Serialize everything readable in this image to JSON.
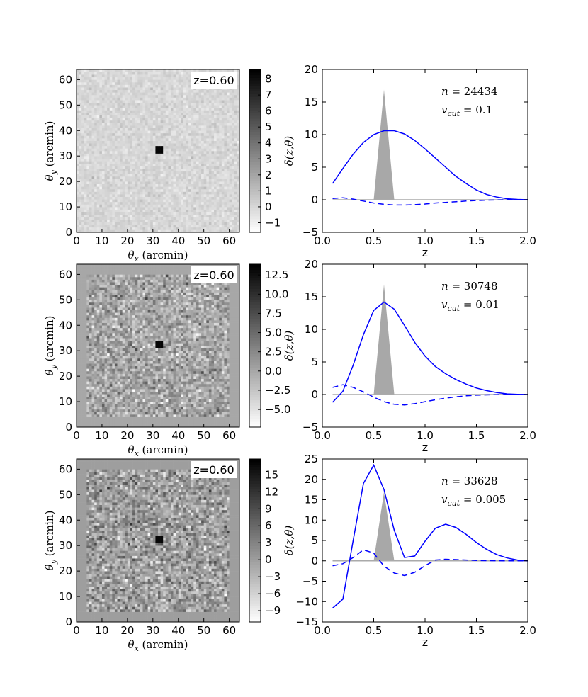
{
  "chart_data": [
    {
      "type": "heatmap",
      "xlabel": "θx (arcmin)",
      "ylabel": "θy (arcmin)",
      "xlim": [
        0,
        64
      ],
      "ylim": [
        0,
        64
      ],
      "xticks": [
        "0",
        "10",
        "20",
        "30",
        "40",
        "50",
        "60"
      ],
      "yticks": [
        "0",
        "10",
        "20",
        "30",
        "40",
        "50",
        "60"
      ],
      "annotation": "z=0.60",
      "colorbar_ticks": [
        "−1",
        "0",
        "1",
        "2",
        "3",
        "4",
        "5",
        "6",
        "7",
        "8"
      ],
      "colorbar_range": [
        -1.6,
        8.6
      ],
      "peak": {
        "x": 32,
        "y": 32,
        "value": 8.4
      },
      "noise_sigma": 0.35,
      "border_width": 0,
      "seed": 11
    },
    {
      "type": "line",
      "xlabel": "z",
      "ylabel": "δ(z,θ)",
      "xlim": [
        0,
        2.0
      ],
      "ylim": [
        -5,
        20
      ],
      "xticks": [
        "0.0",
        "0.5",
        "1.0",
        "1.5",
        "2.0"
      ],
      "yticks": [
        "−5",
        "0",
        "5",
        "10",
        "15",
        "20"
      ],
      "ytick_values": [
        -5,
        0,
        5,
        10,
        15,
        20
      ],
      "xtick_values": [
        0,
        0.5,
        1.0,
        1.5,
        2.0
      ],
      "annotation_n": "n = 24434",
      "annotation_v": "vcut = 0.1",
      "n_value": "24434",
      "vcut_value": "0.1",
      "true_profile": {
        "x": [
          0.5,
          0.6,
          0.7
        ],
        "y": [
          0,
          16.9,
          0
        ]
      },
      "series": [
        {
          "style": "solid",
          "x": [
            0.1,
            0.2,
            0.3,
            0.4,
            0.5,
            0.6,
            0.7,
            0.8,
            0.9,
            1.0,
            1.1,
            1.2,
            1.3,
            1.4,
            1.5,
            1.6,
            1.7,
            1.8,
            1.9,
            2.0
          ],
          "values": [
            2.5,
            4.8,
            7.0,
            8.8,
            10.0,
            10.6,
            10.6,
            10.1,
            9.1,
            7.8,
            6.4,
            5.0,
            3.6,
            2.5,
            1.5,
            0.8,
            0.4,
            0.15,
            0.05,
            0.0
          ]
        },
        {
          "style": "dashed",
          "x": [
            0.1,
            0.2,
            0.3,
            0.4,
            0.5,
            0.6,
            0.7,
            0.8,
            0.9,
            1.0,
            1.1,
            1.2,
            1.3,
            1.4,
            1.5,
            1.6,
            1.7,
            1.8,
            1.9,
            2.0
          ],
          "values": [
            0.2,
            0.3,
            0.1,
            -0.2,
            -0.5,
            -0.7,
            -0.8,
            -0.8,
            -0.75,
            -0.65,
            -0.5,
            -0.4,
            -0.3,
            -0.2,
            -0.12,
            -0.06,
            -0.03,
            0.0,
            0.0,
            0.0
          ]
        }
      ]
    },
    {
      "type": "heatmap",
      "xlabel": "θx (arcmin)",
      "ylabel": "θy (arcmin)",
      "xlim": [
        0,
        64
      ],
      "ylim": [
        0,
        64
      ],
      "xticks": [
        "0",
        "10",
        "20",
        "30",
        "40",
        "50",
        "60"
      ],
      "yticks": [
        "0",
        "10",
        "20",
        "30",
        "40",
        "50",
        "60"
      ],
      "annotation": "z=0.60",
      "colorbar_ticks": [
        "−5.0",
        "−2.5",
        "0.0",
        "2.5",
        "5.0",
        "7.5",
        "10.0",
        "12.5"
      ],
      "colorbar_range": [
        -7.3,
        13.9
      ],
      "peak": {
        "x": 32,
        "y": 32,
        "value": 13.5
      },
      "noise_sigma": 2.4,
      "border_width": 4,
      "seed": 23
    },
    {
      "type": "line",
      "xlabel": "z",
      "ylabel": "δ(z,θ)",
      "xlim": [
        0,
        2.0
      ],
      "ylim": [
        -5,
        20
      ],
      "xticks": [
        "0.0",
        "0.5",
        "1.0",
        "1.5",
        "2.0"
      ],
      "yticks": [
        "−5",
        "0",
        "5",
        "10",
        "15",
        "20"
      ],
      "ytick_values": [
        -5,
        0,
        5,
        10,
        15,
        20
      ],
      "xtick_values": [
        0,
        0.5,
        1.0,
        1.5,
        2.0
      ],
      "annotation_n": "n = 30748",
      "annotation_v": "vcut = 0.01",
      "n_value": "30748",
      "vcut_value": "0.01",
      "true_profile": {
        "x": [
          0.5,
          0.6,
          0.7
        ],
        "y": [
          0,
          16.9,
          0
        ]
      },
      "series": [
        {
          "style": "solid",
          "x": [
            0.1,
            0.2,
            0.3,
            0.4,
            0.5,
            0.6,
            0.7,
            0.8,
            0.9,
            1.0,
            1.1,
            1.2,
            1.3,
            1.4,
            1.5,
            1.6,
            1.7,
            1.8,
            1.9,
            2.0
          ],
          "values": [
            -1.2,
            0.5,
            4.5,
            9.2,
            12.9,
            14.2,
            13.1,
            10.6,
            8.0,
            5.9,
            4.3,
            3.2,
            2.3,
            1.6,
            1.0,
            0.6,
            0.3,
            0.1,
            0.03,
            0.0
          ]
        },
        {
          "style": "dashed",
          "x": [
            0.1,
            0.2,
            0.3,
            0.4,
            0.5,
            0.6,
            0.7,
            0.8,
            0.9,
            1.0,
            1.1,
            1.2,
            1.3,
            1.4,
            1.5,
            1.6,
            1.7,
            1.8,
            1.9,
            2.0
          ],
          "values": [
            1.1,
            1.5,
            1.1,
            0.4,
            -0.4,
            -1.1,
            -1.5,
            -1.6,
            -1.4,
            -1.1,
            -0.8,
            -0.55,
            -0.35,
            -0.2,
            -0.1,
            -0.05,
            -0.02,
            0.0,
            0.0,
            0.0
          ]
        }
      ]
    },
    {
      "type": "heatmap",
      "xlabel": "θx (arcmin)",
      "ylabel": "θy (arcmin)",
      "xlim": [
        0,
        64
      ],
      "ylim": [
        0,
        64
      ],
      "xticks": [
        "0",
        "10",
        "20",
        "30",
        "40",
        "50",
        "60"
      ],
      "yticks": [
        "0",
        "10",
        "20",
        "30",
        "40",
        "50",
        "60"
      ],
      "annotation": "z=0.60",
      "colorbar_ticks": [
        "−9",
        "−6",
        "−3",
        "0",
        "3",
        "6",
        "9",
        "12",
        "15"
      ],
      "colorbar_range": [
        -11,
        17.8
      ],
      "peak": {
        "x": 32,
        "y": 32,
        "value": 17
      },
      "noise_sigma": 3.6,
      "border_width": 4,
      "seed": 37
    },
    {
      "type": "line",
      "xlabel": "z",
      "ylabel": "δ(z,θ)",
      "xlim": [
        0,
        2.0
      ],
      "ylim": [
        -15,
        25
      ],
      "xticks": [
        "0.0",
        "0.5",
        "1.0",
        "1.5",
        "2.0"
      ],
      "yticks": [
        "−15",
        "−10",
        "−5",
        "0",
        "5",
        "10",
        "15",
        "20",
        "25"
      ],
      "ytick_values": [
        -15,
        -10,
        -5,
        0,
        5,
        10,
        15,
        20,
        25
      ],
      "xtick_values": [
        0,
        0.5,
        1.0,
        1.5,
        2.0
      ],
      "annotation_n": "n = 33628",
      "annotation_v": "vcut = 0.005",
      "n_value": "33628",
      "vcut_value": "0.005",
      "true_profile": {
        "x": [
          0.5,
          0.6,
          0.7
        ],
        "y": [
          0,
          16.9,
          0
        ]
      },
      "series": [
        {
          "style": "solid",
          "x": [
            0.1,
            0.2,
            0.3,
            0.4,
            0.5,
            0.6,
            0.7,
            0.8,
            0.9,
            1.0,
            1.1,
            1.2,
            1.3,
            1.4,
            1.5,
            1.6,
            1.7,
            1.8,
            1.9,
            2.0
          ],
          "values": [
            -11.6,
            -9.4,
            5.0,
            19.0,
            23.5,
            17.5,
            7.5,
            0.8,
            1.2,
            4.8,
            8.0,
            9.0,
            8.2,
            6.5,
            4.5,
            2.8,
            1.5,
            0.7,
            0.2,
            0.0
          ]
        },
        {
          "style": "dashed",
          "x": [
            0.1,
            0.2,
            0.3,
            0.4,
            0.5,
            0.6,
            0.7,
            0.8,
            0.9,
            1.0,
            1.1,
            1.2,
            1.3,
            1.4,
            1.5,
            1.6,
            1.7,
            1.8,
            1.9,
            2.0
          ],
          "values": [
            -1.2,
            -0.7,
            0.8,
            2.7,
            1.9,
            -1.3,
            -3.0,
            -3.6,
            -2.8,
            -1.2,
            0.2,
            0.4,
            0.3,
            0.2,
            0.1,
            0.05,
            0.02,
            0.0,
            0.0,
            0.0
          ]
        }
      ]
    }
  ],
  "colors": {
    "line": "#0000ff",
    "true_fill": "#a8a8a8",
    "zero_line": "#aaaaaa",
    "badge_bg": "#ffffff"
  }
}
